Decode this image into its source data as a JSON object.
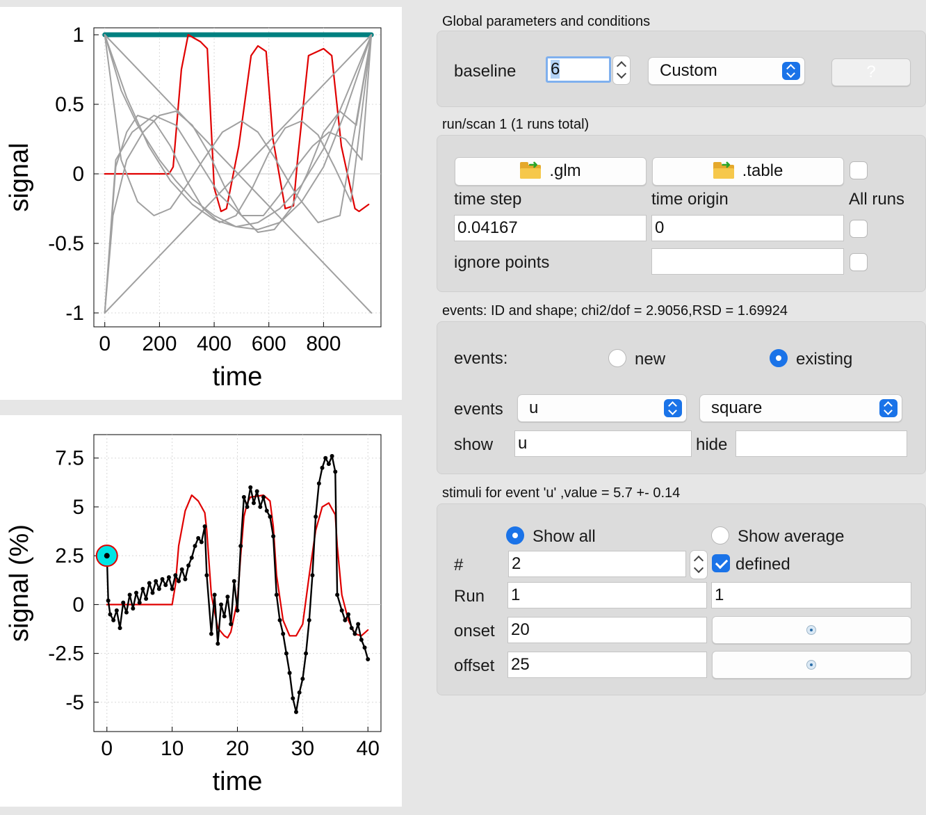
{
  "charts": {
    "top": {
      "type": "line",
      "xlabel": "time",
      "ylabel": "signal",
      "xlim": [
        -40,
        1010
      ],
      "ylim": [
        -1.1,
        1.05
      ],
      "xticks": [
        0,
        200,
        400,
        600,
        800
      ],
      "yticks": [
        -1,
        -0.5,
        0,
        0.5,
        1
      ],
      "ytick_labels": [
        "-1",
        "-0.5",
        "0",
        "0.5",
        "1"
      ],
      "grid": true,
      "legend": "none"
    },
    "bottom": {
      "type": "line",
      "xlabel": "time",
      "ylabel": "signal (%)",
      "xlim": [
        -2,
        42
      ],
      "ylim": [
        -6.5,
        8.7
      ],
      "xticks": [
        0,
        10,
        20,
        30,
        40
      ],
      "yticks": [
        -5,
        -2.5,
        0,
        2.5,
        5,
        7.5
      ],
      "ytick_labels": [
        "-5",
        "-2.5",
        "0",
        "2.5",
        "5",
        "7.5"
      ],
      "grid": true,
      "legend": "none",
      "highlight_point": {
        "x": 0,
        "y": 2.5
      }
    }
  },
  "chart_data": [
    {
      "type": "line",
      "title": "",
      "xlabel": "time",
      "ylabel": "signal",
      "xlim": [
        -40,
        1010
      ],
      "ylim": [
        -1.1,
        1.05
      ],
      "series": [
        {
          "name": "",
          "color": "#008080",
          "x": [
            0,
            975
          ],
          "y": [
            1,
            1
          ]
        },
        {
          "name": "",
          "color": "#e00000",
          "x": [
            0,
            235,
            250,
            280,
            305,
            350,
            375,
            400,
            425,
            445,
            490,
            535,
            560,
            590,
            615,
            660,
            690,
            705,
            745,
            800,
            830,
            865,
            915,
            930,
            965
          ],
          "y": [
            0,
            0,
            0.05,
            0.75,
            1,
            0.95,
            0.9,
            -0.1,
            -0.27,
            -0.25,
            0.2,
            0.85,
            0.92,
            0.88,
            0.25,
            -0.25,
            -0.23,
            0.1,
            0.85,
            0.9,
            0.85,
            0.2,
            -0.25,
            -0.27,
            -0.22
          ]
        },
        {
          "name": "",
          "color": "#a0a0a0",
          "x": [
            0,
            975
          ],
          "y": [
            -1,
            1
          ]
        },
        {
          "name": "",
          "color": "#a0a0a0",
          "x": [
            0,
            975
          ],
          "y": [
            1,
            -1
          ]
        },
        {
          "name": "",
          "color": "#a0a0a0",
          "x": [
            0,
            80,
            160,
            240,
            320,
            400,
            480,
            560,
            640,
            720,
            800,
            880,
            975
          ],
          "y": [
            1,
            0.55,
            0.2,
            -0.05,
            -0.22,
            -0.33,
            -0.38,
            -0.35,
            -0.25,
            -0.08,
            0.18,
            0.55,
            1
          ]
        },
        {
          "name": "",
          "color": "#a0a0a0",
          "x": [
            0,
            60,
            120,
            200,
            260,
            320,
            400,
            480,
            560,
            640,
            720,
            800,
            880,
            975
          ],
          "y": [
            1,
            0.6,
            0.35,
            0.1,
            -0.05,
            -0.18,
            -0.3,
            -0.38,
            -0.4,
            -0.35,
            -0.2,
            0.05,
            0.45,
            1
          ]
        },
        {
          "name": "",
          "color": "#a0a0a0",
          "x": [
            0,
            60,
            120,
            180,
            240,
            300,
            360,
            430,
            500,
            560,
            620,
            700,
            780,
            860,
            975
          ],
          "y": [
            1,
            0.1,
            -0.2,
            -0.3,
            -0.25,
            -0.08,
            0.1,
            0.3,
            0.38,
            0.3,
            0.12,
            -0.15,
            -0.35,
            -0.3,
            1
          ]
        },
        {
          "name": "",
          "color": "#a0a0a0",
          "x": [
            0,
            40,
            80,
            120,
            180,
            240,
            300,
            360,
            420,
            480,
            540,
            600,
            660,
            720,
            780,
            840,
            900,
            975
          ],
          "y": [
            -1,
            0.05,
            0.3,
            0.42,
            0.38,
            0.2,
            -0.05,
            -0.25,
            -0.35,
            -0.3,
            -0.1,
            0.15,
            0.33,
            0.38,
            0.28,
            0.05,
            -0.2,
            1
          ]
        },
        {
          "name": "",
          "color": "#a0a0a0",
          "x": [
            0,
            40,
            100,
            180,
            260,
            340,
            420,
            500,
            580,
            640,
            700,
            760,
            820,
            880,
            940,
            975
          ],
          "y": [
            -1,
            0.1,
            0.3,
            0.42,
            0.35,
            0.1,
            -0.15,
            -0.3,
            -0.3,
            -0.15,
            0.05,
            0.2,
            0.3,
            0.25,
            0.1,
            1
          ]
        },
        {
          "name": "",
          "color": "#a0a0a0",
          "x": [
            0,
            30,
            80,
            140,
            200,
            260,
            320,
            380,
            440,
            500,
            560,
            620,
            680,
            740,
            800,
            860,
            920,
            975
          ],
          "y": [
            -1,
            -0.3,
            0.1,
            0.3,
            0.42,
            0.45,
            0.35,
            0.15,
            -0.1,
            -0.3,
            -0.42,
            -0.4,
            -0.25,
            0.0,
            0.3,
            0.45,
            0.35,
            1
          ]
        }
      ]
    },
    {
      "type": "line",
      "title": "",
      "xlabel": "time",
      "ylabel": "signal (%)",
      "xlim": [
        -2,
        42
      ],
      "ylim": [
        -6.5,
        8.7
      ],
      "series": [
        {
          "name": "",
          "color": "#e00000",
          "x": [
            0,
            10,
            10.5,
            11,
            12,
            13,
            14,
            15,
            15.3,
            16,
            17,
            18,
            18.5,
            19,
            20,
            20.5,
            21,
            21.5,
            22,
            24,
            25,
            25.5,
            26,
            27,
            28,
            29,
            30,
            31,
            32,
            33,
            34,
            35,
            35.3,
            36,
            37,
            38,
            39,
            40
          ],
          "y": [
            0,
            0,
            1,
            3,
            4.8,
            5.6,
            5.3,
            4.7,
            3.8,
            0.5,
            -1.2,
            -1.6,
            -1.7,
            -1.4,
            0.2,
            2.5,
            4.5,
            5.2,
            5.5,
            5.6,
            5.3,
            4,
            1.5,
            -0.8,
            -1.6,
            -1.6,
            -1,
            1.5,
            3.8,
            5,
            5.2,
            4.6,
            3,
            0.5,
            -0.8,
            -1.5,
            -1.6,
            -1.3
          ]
        },
        {
          "name": "",
          "color": "#000000",
          "x": [
            0,
            0.2,
            0.5,
            1,
            1.5,
            2,
            2.5,
            3,
            3.5,
            4,
            4.5,
            5,
            5.5,
            6,
            6.5,
            7,
            7.5,
            8,
            8.5,
            9,
            9.5,
            10,
            10.5,
            11,
            11.5,
            12,
            12.5,
            13,
            13.5,
            14,
            14.5,
            15,
            15.3,
            16,
            16.5,
            17,
            17.5,
            18,
            18.5,
            19,
            19.5,
            20,
            20.5,
            21,
            21.5,
            22,
            22.5,
            23,
            23.5,
            24,
            24.5,
            25,
            25.5,
            26,
            26.5,
            27,
            27.5,
            28,
            28.5,
            29,
            29.5,
            30,
            30.5,
            31,
            31.5,
            32,
            32.5,
            33,
            33.5,
            34,
            34.5,
            35,
            35.3,
            36,
            36.5,
            37,
            37.5,
            38,
            38.5,
            39,
            39.5,
            40
          ],
          "y": [
            2.5,
            0.2,
            -0.5,
            -0.8,
            -0.3,
            -1.2,
            0.1,
            -0.4,
            0.5,
            -0.2,
            0.6,
            0.1,
            0.8,
            0.3,
            1.1,
            0.6,
            1.2,
            0.8,
            1.3,
            1.0,
            1.4,
            0.8,
            1.5,
            1.2,
            1.8,
            1.3,
            2.0,
            2.4,
            3.0,
            3.4,
            3.2,
            4.0,
            1.5,
            -1.5,
            0.5,
            -2.0,
            0.0,
            -0.6,
            0.4,
            -1.0,
            1.2,
            -0.3,
            3.0,
            5.5,
            5.0,
            6.0,
            5.2,
            5.8,
            5.0,
            5.5,
            4.8,
            4.5,
            3.5,
            0.5,
            -0.8,
            -1.5,
            -2.5,
            -3.5,
            -4.8,
            -5.5,
            -4.5,
            -3.8,
            -2.5,
            -0.8,
            1.5,
            4.5,
            6.2,
            7.0,
            7.5,
            7.2,
            7.6,
            6.8,
            0.5,
            -0.3,
            -0.8,
            -0.5,
            -1.2,
            -1.5,
            -1.0,
            -1.8,
            -2.2,
            -2.8
          ]
        }
      ]
    }
  ],
  "global": {
    "title": "Global parameters and conditions",
    "baseline_label": "baseline",
    "baseline_value": "6",
    "mode_value": "Custom",
    "help_label": "?"
  },
  "run": {
    "title": "run/scan 1    (1 runs total)",
    "glm_button": ".glm",
    "table_button": ".table",
    "time_step_label": "time step",
    "time_origin_label": "time origin",
    "all_runs_label": "All runs",
    "time_step_value": "0.04167",
    "time_origin_value": "0",
    "ignore_points_label": "ignore points",
    "ignore_points_value": ""
  },
  "events": {
    "title": "events: ID and shape; chi2/dof = 2.9056,RSD = 1.69924",
    "events_label": "events:",
    "new_label": "new",
    "existing_label": "existing",
    "select_label": "events",
    "event_value": "u",
    "shape_value": "square",
    "show_label": "show",
    "show_value": "u",
    "hide_label": "hide",
    "hide_value": ""
  },
  "stimuli": {
    "title": "stimuli for event 'u' ,value = 5.7 +- 0.14",
    "show_all_label": "Show all",
    "show_average_label": "Show average",
    "num_label": "#",
    "num_value": "2",
    "defined_label": "defined",
    "run_label": "Run",
    "run_value_1": "1",
    "run_value_2": "1",
    "onset_label": "onset",
    "onset_value": "20",
    "offset_label": "offset",
    "offset_value": "25"
  },
  "colors": {
    "accent": "#1a73e8",
    "teal": "#008080",
    "red": "#e00000",
    "gray_curve": "#a0a0a0",
    "highlight": "#00e5e5"
  }
}
